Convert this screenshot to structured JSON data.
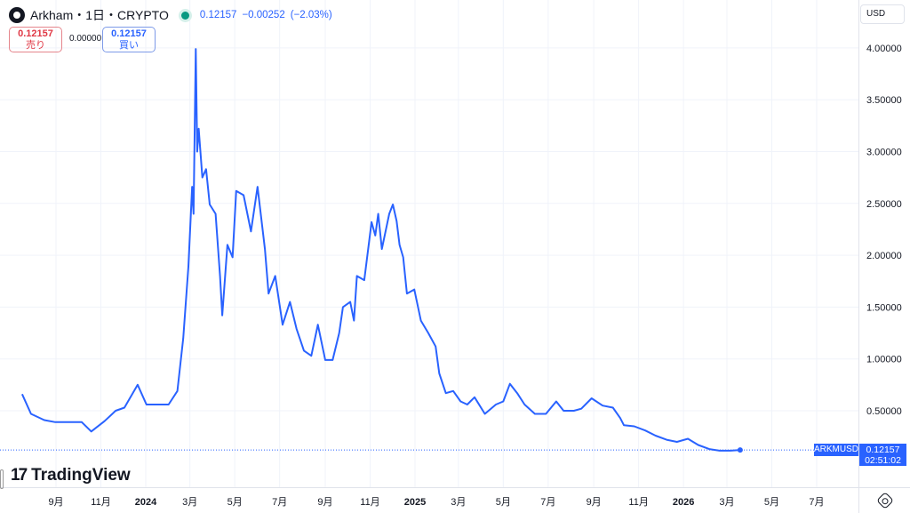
{
  "header": {
    "symbol_title": "Arkham・1日・CRYPTO",
    "last": "0.12157",
    "change": "−0.00252",
    "change_pct": "(−2.03%)",
    "status_color": "#089981"
  },
  "trade": {
    "sell_price": "0.12157",
    "sell_label": "売り",
    "spread": "0.00000",
    "buy_price": "0.12157",
    "buy_label": "買い"
  },
  "currency": "USD",
  "brand": "TradingView",
  "price_label": {
    "symbol": "ARKMUSD",
    "price": "0.12157",
    "countdown": "02:51:02"
  },
  "chart_data": {
    "type": "line",
    "line_color": "#2962ff",
    "ylim": [
      0,
      4.0
    ],
    "y_ticks": [
      "0.50000",
      "1.00000",
      "1.50000",
      "2.00000",
      "2.50000",
      "3.00000",
      "3.50000",
      "4.00000"
    ],
    "y_tick_values": [
      0.5,
      1,
      1.5,
      2,
      2.5,
      3,
      3.5,
      4
    ],
    "x_ticks": [
      {
        "date": "2023-09-01",
        "label": "9月"
      },
      {
        "date": "2023-11-01",
        "label": "11月"
      },
      {
        "date": "2024-01-01",
        "label": "2024"
      },
      {
        "date": "2024-03-01",
        "label": "3月"
      },
      {
        "date": "2024-05-01",
        "label": "5月"
      },
      {
        "date": "2024-07-01",
        "label": "7月"
      },
      {
        "date": "2024-09-01",
        "label": "9月"
      },
      {
        "date": "2024-11-01",
        "label": "11月"
      },
      {
        "date": "2025-01-01",
        "label": "2025"
      },
      {
        "date": "2025-03-01",
        "label": "3月"
      },
      {
        "date": "2025-05-01",
        "label": "5月"
      },
      {
        "date": "2025-07-01",
        "label": "7月"
      },
      {
        "date": "2025-09-01",
        "label": "9月"
      },
      {
        "date": "2025-11-01",
        "label": "11月"
      },
      {
        "date": "2026-01-01",
        "label": "2026"
      },
      {
        "date": "2026-03-01",
        "label": "3月"
      },
      {
        "date": "2026-05-01",
        "label": "5月"
      },
      {
        "date": "2026-07-01",
        "label": "7月"
      }
    ],
    "points": [
      [
        "2023-07-17",
        0.66
      ],
      [
        "2023-07-29",
        0.47
      ],
      [
        "2023-08-16",
        0.41
      ],
      [
        "2023-08-31",
        0.39
      ],
      [
        "2023-09-19",
        0.39
      ],
      [
        "2023-10-06",
        0.39
      ],
      [
        "2023-10-19",
        0.3
      ],
      [
        "2023-11-06",
        0.4
      ],
      [
        "2023-11-21",
        0.5
      ],
      [
        "2023-12-03",
        0.53
      ],
      [
        "2023-12-21",
        0.75
      ],
      [
        "2024-01-02",
        0.56
      ],
      [
        "2024-01-20",
        0.56
      ],
      [
        "2024-02-01",
        0.56
      ],
      [
        "2024-02-13",
        0.69
      ],
      [
        "2024-02-21",
        1.2
      ],
      [
        "2024-02-28",
        1.89
      ],
      [
        "2024-03-04",
        2.66
      ],
      [
        "2024-03-06",
        2.4
      ],
      [
        "2024-03-09",
        3.99
      ],
      [
        "2024-03-11",
        3.0
      ],
      [
        "2024-03-13",
        3.22
      ],
      [
        "2024-03-18",
        2.75
      ],
      [
        "2024-03-23",
        2.83
      ],
      [
        "2024-03-28",
        2.49
      ],
      [
        "2024-04-05",
        2.4
      ],
      [
        "2024-04-11",
        1.8
      ],
      [
        "2024-04-14",
        1.42
      ],
      [
        "2024-04-21",
        2.1
      ],
      [
        "2024-04-28",
        1.98
      ],
      [
        "2024-05-03",
        2.62
      ],
      [
        "2024-05-13",
        2.58
      ],
      [
        "2024-05-23",
        2.23
      ],
      [
        "2024-06-01",
        2.66
      ],
      [
        "2024-06-11",
        2.06
      ],
      [
        "2024-06-16",
        1.63
      ],
      [
        "2024-06-25",
        1.8
      ],
      [
        "2024-07-05",
        1.33
      ],
      [
        "2024-07-15",
        1.55
      ],
      [
        "2024-07-24",
        1.29
      ],
      [
        "2024-08-03",
        1.08
      ],
      [
        "2024-08-13",
        1.03
      ],
      [
        "2024-08-22",
        1.33
      ],
      [
        "2024-09-01",
        0.99
      ],
      [
        "2024-09-11",
        0.99
      ],
      [
        "2024-09-20",
        1.25
      ],
      [
        "2024-09-25",
        1.5
      ],
      [
        "2024-10-05",
        1.55
      ],
      [
        "2024-10-10",
        1.37
      ],
      [
        "2024-10-14",
        1.8
      ],
      [
        "2024-10-24",
        1.76
      ],
      [
        "2024-11-03",
        2.32
      ],
      [
        "2024-11-08",
        2.19
      ],
      [
        "2024-11-12",
        2.4
      ],
      [
        "2024-11-17",
        2.06
      ],
      [
        "2024-11-27",
        2.4
      ],
      [
        "2024-12-02",
        2.49
      ],
      [
        "2024-12-07",
        2.33
      ],
      [
        "2024-12-11",
        2.1
      ],
      [
        "2024-12-16",
        1.98
      ],
      [
        "2024-12-21",
        1.63
      ],
      [
        "2024-12-31",
        1.67
      ],
      [
        "2025-01-09",
        1.37
      ],
      [
        "2025-01-19",
        1.25
      ],
      [
        "2025-01-29",
        1.12
      ],
      [
        "2025-02-03",
        0.86
      ],
      [
        "2025-02-12",
        0.67
      ],
      [
        "2025-02-22",
        0.69
      ],
      [
        "2025-03-04",
        0.59
      ],
      [
        "2025-03-13",
        0.56
      ],
      [
        "2025-03-23",
        0.63
      ],
      [
        "2025-04-06",
        0.47
      ],
      [
        "2025-04-21",
        0.56
      ],
      [
        "2025-05-01",
        0.59
      ],
      [
        "2025-05-10",
        0.76
      ],
      [
        "2025-05-20",
        0.67
      ],
      [
        "2025-05-30",
        0.56
      ],
      [
        "2025-06-13",
        0.47
      ],
      [
        "2025-06-28",
        0.47
      ],
      [
        "2025-07-12",
        0.59
      ],
      [
        "2025-07-22",
        0.5
      ],
      [
        "2025-08-05",
        0.5
      ],
      [
        "2025-08-15",
        0.52
      ],
      [
        "2025-08-29",
        0.62
      ],
      [
        "2025-09-13",
        0.55
      ],
      [
        "2025-09-27",
        0.53
      ],
      [
        "2025-10-07",
        0.43
      ],
      [
        "2025-10-12",
        0.36
      ],
      [
        "2025-10-26",
        0.35
      ],
      [
        "2025-11-10",
        0.31
      ],
      [
        "2025-11-24",
        0.26
      ],
      [
        "2025-12-09",
        0.22
      ],
      [
        "2025-12-23",
        0.2
      ],
      [
        "2026-01-07",
        0.23
      ],
      [
        "2026-01-21",
        0.17
      ],
      [
        "2026-02-05",
        0.13
      ],
      [
        "2026-02-19",
        0.115
      ],
      [
        "2026-03-06",
        0.115
      ],
      [
        "2026-03-19",
        0.12157
      ]
    ],
    "last_value": 0.12157,
    "grid": true
  }
}
